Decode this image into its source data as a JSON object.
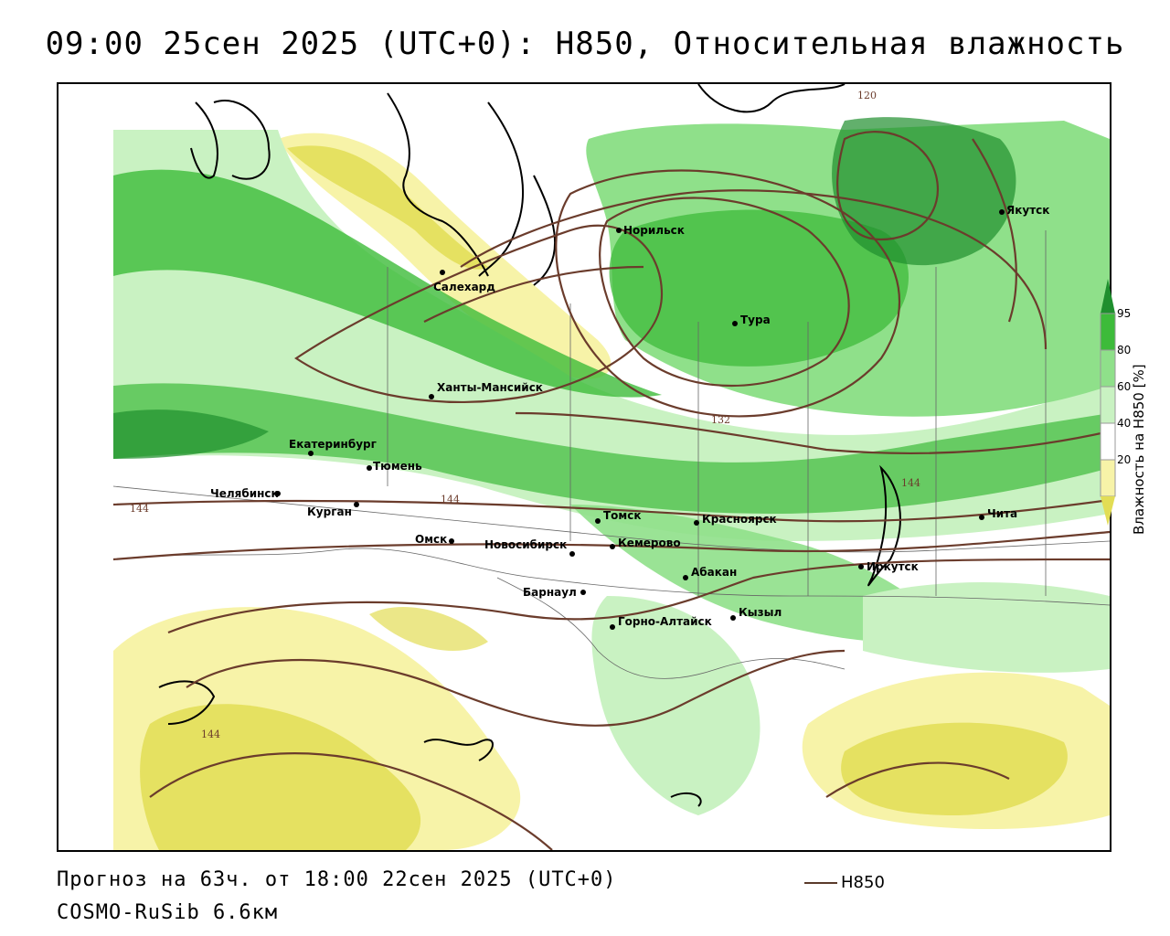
{
  "title": "09:00 25сен 2025 (UTC+0): H850, Относительная влажность",
  "forecast_line": "Прогноз на 63ч. от 18:00 22сен 2025 (UTC+0)",
  "model_line": "COSMO-RuSib 6.6км",
  "legend": {
    "contour_label": "H850",
    "contour_color": "#5a3a2a"
  },
  "colorbar": {
    "title": "Влажность на H850 [%]",
    "ticks": [
      "95",
      "80",
      "60",
      "40",
      "20"
    ],
    "colors": [
      "#1f8f2e",
      "#3dbb3a",
      "#8fe08a",
      "#c9f2c2",
      "#ffffff",
      "#f7f3a8",
      "#e2dd55"
    ]
  },
  "contour_labels": [
    "120",
    "132",
    "144",
    "144",
    "144",
    "144"
  ],
  "cities": [
    {
      "name": "Норильск"
    },
    {
      "name": "Якутск"
    },
    {
      "name": "Салехард"
    },
    {
      "name": "Тура"
    },
    {
      "name": "Ханты-Мансийск"
    },
    {
      "name": "Екатеринбург"
    },
    {
      "name": "Тюмень"
    },
    {
      "name": "Челябинск"
    },
    {
      "name": "Курган"
    },
    {
      "name": "Омск"
    },
    {
      "name": "Новосибирск"
    },
    {
      "name": "Томск"
    },
    {
      "name": "Кемерово"
    },
    {
      "name": "Красноярск"
    },
    {
      "name": "Абакан"
    },
    {
      "name": "Барнаул"
    },
    {
      "name": "Горно-Алтайск"
    },
    {
      "name": "Кызыл"
    },
    {
      "name": "Иркутск"
    },
    {
      "name": "Чита"
    }
  ]
}
